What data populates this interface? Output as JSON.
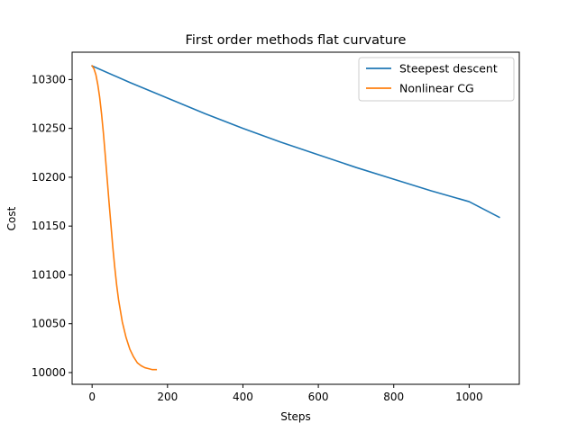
{
  "chart_data": {
    "type": "line",
    "title": "First order methods flat curvature",
    "xlabel": "Steps",
    "ylabel": "Cost",
    "xlim": [
      -53,
      1133
    ],
    "ylim": [
      9988,
      10328
    ],
    "xticks": [
      0,
      200,
      400,
      600,
      800,
      1000
    ],
    "yticks": [
      10000,
      10050,
      10100,
      10150,
      10200,
      10250,
      10300
    ],
    "grid": false,
    "legend_position": "top-right",
    "series": [
      {
        "name": "Steepest descent",
        "color": "#1f77b4",
        "x": [
          0,
          100,
          200,
          300,
          400,
          500,
          600,
          700,
          800,
          900,
          1000,
          1080
        ],
        "y": [
          10314,
          10297,
          10281,
          10265,
          10250,
          10236,
          10223,
          10210,
          10198,
          10186,
          10175,
          10159
        ]
      },
      {
        "name": "Nonlinear CG",
        "color": "#ff7f0e",
        "x": [
          0,
          5,
          10,
          15,
          20,
          25,
          30,
          35,
          40,
          45,
          50,
          55,
          60,
          65,
          70,
          80,
          90,
          100,
          110,
          120,
          130,
          140,
          150,
          160,
          170
        ],
        "y": [
          10314,
          10311,
          10305,
          10295,
          10282,
          10265,
          10245,
          10222,
          10198,
          10174,
          10151,
          10128,
          10108,
          10090,
          10075,
          10052,
          10036,
          10024,
          10016,
          10010,
          10007,
          10005,
          10004,
          10003,
          10003
        ]
      }
    ]
  }
}
